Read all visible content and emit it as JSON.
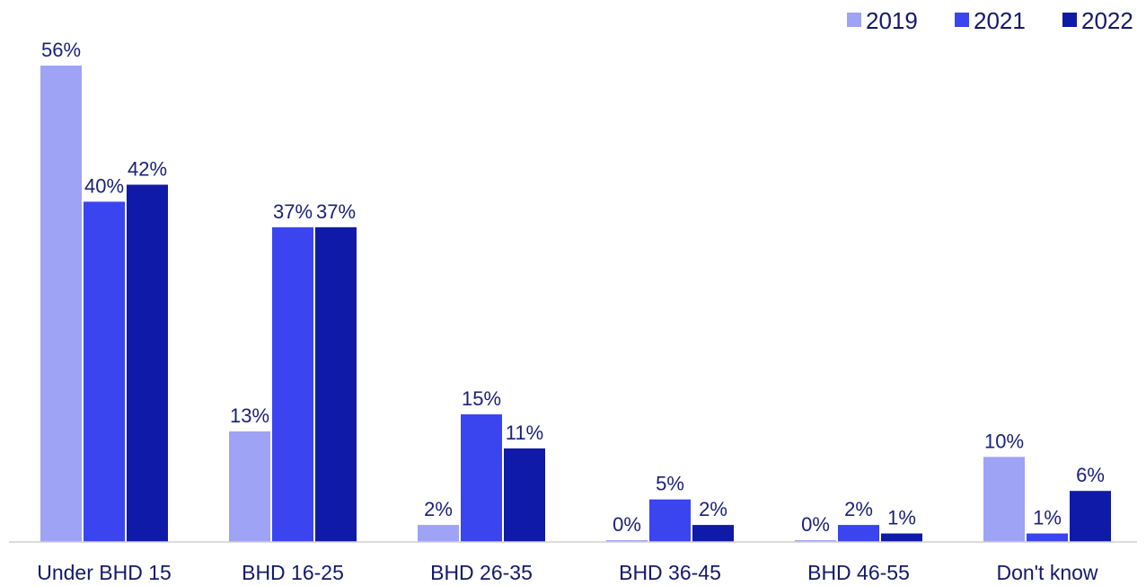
{
  "chart_data": {
    "type": "bar",
    "categories": [
      "Under BHD 15",
      "BHD 16-25",
      "BHD 26-35",
      "BHD 36-45",
      "BHD 46-55",
      "Don't know"
    ],
    "series": [
      {
        "name": "2019",
        "color": "#9ea3f5",
        "values": [
          56,
          13,
          2,
          0,
          0,
          10
        ],
        "labels": [
          "56%",
          "13%",
          "2%",
          "0%",
          "0%",
          "10%"
        ]
      },
      {
        "name": "2021",
        "color": "#3a44ef",
        "values": [
          40,
          37,
          15,
          5,
          2,
          1
        ],
        "labels": [
          "40%",
          "37%",
          "15%",
          "5%",
          "2%",
          "1%"
        ]
      },
      {
        "name": "2022",
        "color": "#0f1aa8",
        "values": [
          42,
          37,
          11,
          2,
          1,
          6
        ],
        "labels": [
          "42%",
          "37%",
          "11%",
          "2%",
          "1%",
          "6%"
        ]
      }
    ],
    "ylim": [
      0,
      56
    ],
    "legend_position": "top-right",
    "grid": false
  }
}
